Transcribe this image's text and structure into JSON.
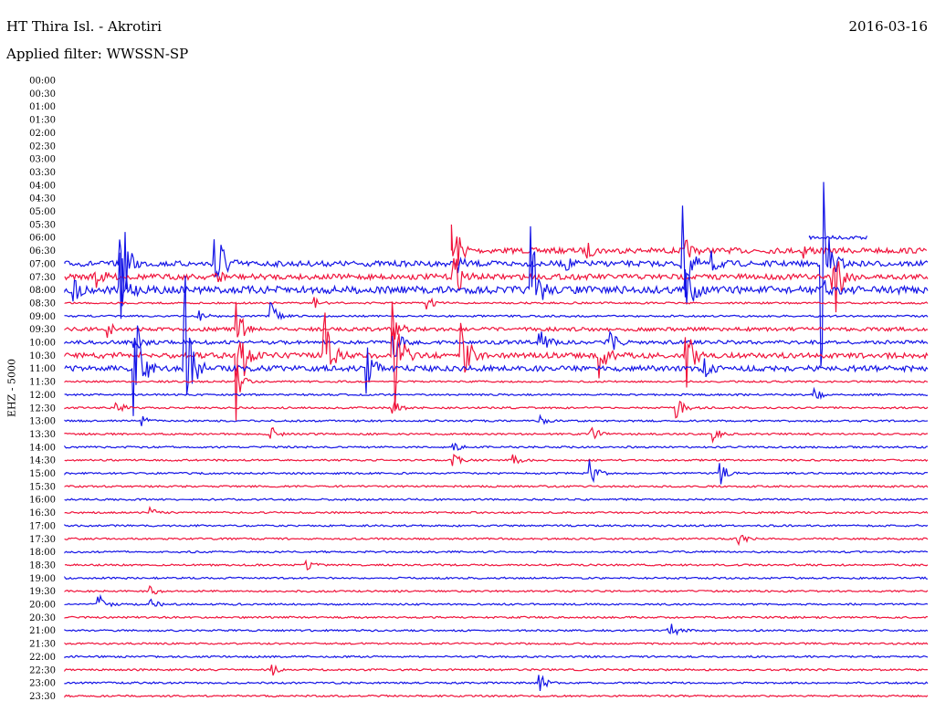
{
  "header": {
    "station": "HT Thira Isl. - Akrotiri",
    "date": "2016-03-16",
    "filter_label": "Applied filter: WWSSN-SP",
    "channel_label": "EHZ - 5000"
  },
  "colors": {
    "red": "#f0143c",
    "blue": "#1414e6"
  },
  "chart_data": {
    "type": "line",
    "title": "HT Thira Isl. - Akrotiri",
    "ylabel": "EHZ - 5000",
    "rows": [
      {
        "label": "00:00",
        "color": "blue",
        "start": null,
        "noise": 0,
        "events": []
      },
      {
        "label": "00:30",
        "color": "red",
        "start": null,
        "noise": 0,
        "events": []
      },
      {
        "label": "01:00",
        "color": "blue",
        "start": null,
        "noise": 0,
        "events": []
      },
      {
        "label": "01:30",
        "color": "red",
        "start": null,
        "noise": 0,
        "events": []
      },
      {
        "label": "02:00",
        "color": "blue",
        "start": null,
        "noise": 0,
        "events": []
      },
      {
        "label": "02:30",
        "color": "red",
        "start": null,
        "noise": 0,
        "events": []
      },
      {
        "label": "03:00",
        "color": "blue",
        "start": null,
        "noise": 0,
        "events": []
      },
      {
        "label": "03:30",
        "color": "red",
        "start": null,
        "noise": 0,
        "events": []
      },
      {
        "label": "04:00",
        "color": "blue",
        "start": null,
        "noise": 0,
        "events": []
      },
      {
        "label": "04:30",
        "color": "red",
        "start": null,
        "noise": 0,
        "events": []
      },
      {
        "label": "05:00",
        "color": "blue",
        "start": null,
        "noise": 0,
        "events": []
      },
      {
        "label": "05:30",
        "color": "red",
        "start": null,
        "noise": 0,
        "events": []
      },
      {
        "label": "06:00",
        "color": "blue",
        "start": 0.863,
        "end": 0.93,
        "noise": 2,
        "events": []
      },
      {
        "label": "06:30",
        "color": "red",
        "start": 0.448,
        "noise": 3,
        "events": [
          [
            0.448,
            60
          ],
          [
            0.605,
            8
          ],
          [
            0.72,
            10
          ],
          [
            0.855,
            10
          ]
        ]
      },
      {
        "label": "07:00",
        "color": "blue",
        "start": 0,
        "noise": 3,
        "events": [
          [
            0.065,
            70
          ],
          [
            0.175,
            70
          ],
          [
            0.455,
            8
          ],
          [
            0.58,
            8
          ],
          [
            0.715,
            70
          ],
          [
            0.75,
            12
          ],
          [
            0.878,
            120
          ]
        ]
      },
      {
        "label": "07:30",
        "color": "red",
        "start": 0,
        "noise": 3,
        "events": [
          [
            0.035,
            15
          ],
          [
            0.175,
            10
          ],
          [
            0.45,
            35
          ],
          [
            0.89,
            70
          ]
        ]
      },
      {
        "label": "08:00",
        "color": "blue",
        "start": 0,
        "noise": 4,
        "events": [
          [
            0.01,
            12
          ],
          [
            0.065,
            40
          ],
          [
            0.54,
            80
          ],
          [
            0.72,
            35
          ],
          [
            0.88,
            15
          ]
        ]
      },
      {
        "label": "08:30",
        "color": "red",
        "start": 0,
        "noise": 1,
        "events": [
          [
            0.29,
            6
          ],
          [
            0.42,
            8
          ]
        ]
      },
      {
        "label": "09:00",
        "color": "blue",
        "start": 0,
        "noise": 1,
        "events": [
          [
            0.155,
            10
          ],
          [
            0.24,
            15
          ]
        ]
      },
      {
        "label": "09:30",
        "color": "red",
        "start": 0,
        "noise": 2,
        "events": [
          [
            0.05,
            8
          ],
          [
            0.2,
            30
          ],
          [
            0.38,
            20
          ]
        ]
      },
      {
        "label": "10:00",
        "color": "blue",
        "start": 0,
        "noise": 2,
        "events": [
          [
            0.08,
            15
          ],
          [
            0.38,
            25
          ],
          [
            0.55,
            18
          ],
          [
            0.63,
            25
          ]
        ]
      },
      {
        "label": "10:30",
        "color": "red",
        "start": 0,
        "noise": 3,
        "events": [
          [
            0.2,
            70
          ],
          [
            0.3,
            70
          ],
          [
            0.38,
            90
          ],
          [
            0.46,
            60
          ],
          [
            0.62,
            30
          ],
          [
            0.72,
            40
          ]
        ]
      },
      {
        "label": "11:00",
        "color": "blue",
        "start": 0,
        "noise": 3,
        "events": [
          [
            0.08,
            110
          ],
          [
            0.14,
            100
          ],
          [
            0.35,
            30
          ],
          [
            0.74,
            12
          ]
        ]
      },
      {
        "label": "11:30",
        "color": "red",
        "start": 0,
        "noise": 1,
        "events": [
          [
            0.2,
            20
          ]
        ]
      },
      {
        "label": "12:00",
        "color": "blue",
        "start": 0,
        "noise": 1,
        "events": [
          [
            0.87,
            8
          ]
        ]
      },
      {
        "label": "12:30",
        "color": "red",
        "start": 0,
        "noise": 1,
        "events": [
          [
            0.06,
            8
          ],
          [
            0.38,
            10
          ],
          [
            0.71,
            12
          ]
        ]
      },
      {
        "label": "13:00",
        "color": "blue",
        "start": 0,
        "noise": 1,
        "events": [
          [
            0.09,
            6
          ],
          [
            0.55,
            6
          ]
        ]
      },
      {
        "label": "13:30",
        "color": "red",
        "start": 0,
        "noise": 1,
        "events": [
          [
            0.24,
            8
          ],
          [
            0.61,
            12
          ],
          [
            0.75,
            12
          ]
        ]
      },
      {
        "label": "14:00",
        "color": "blue",
        "start": 0,
        "noise": 1,
        "events": [
          [
            0.45,
            6
          ]
        ]
      },
      {
        "label": "14:30",
        "color": "red",
        "start": 0,
        "noise": 1,
        "events": [
          [
            0.45,
            10
          ],
          [
            0.52,
            6
          ]
        ]
      },
      {
        "label": "15:00",
        "color": "blue",
        "start": 0,
        "noise": 1,
        "events": [
          [
            0.61,
            14
          ],
          [
            0.76,
            16
          ]
        ]
      },
      {
        "label": "15:30",
        "color": "red",
        "start": 0,
        "noise": 1,
        "events": []
      },
      {
        "label": "16:00",
        "color": "blue",
        "start": 0,
        "noise": 1,
        "events": []
      },
      {
        "label": "16:30",
        "color": "red",
        "start": 0,
        "noise": 1,
        "events": [
          [
            0.1,
            5
          ]
        ]
      },
      {
        "label": "17:00",
        "color": "blue",
        "start": 0,
        "noise": 1,
        "events": []
      },
      {
        "label": "17:30",
        "color": "red",
        "start": 0,
        "noise": 1,
        "events": [
          [
            0.78,
            12
          ]
        ]
      },
      {
        "label": "18:00",
        "color": "blue",
        "start": 0,
        "noise": 1,
        "events": []
      },
      {
        "label": "18:30",
        "color": "red",
        "start": 0,
        "noise": 1,
        "events": [
          [
            0.28,
            5
          ]
        ]
      },
      {
        "label": "19:00",
        "color": "blue",
        "start": 0,
        "noise": 1,
        "events": []
      },
      {
        "label": "19:30",
        "color": "red",
        "start": 0,
        "noise": 1,
        "events": [
          [
            0.1,
            5
          ]
        ]
      },
      {
        "label": "20:00",
        "color": "blue",
        "start": 0,
        "noise": 1,
        "events": [
          [
            0.04,
            12
          ],
          [
            0.1,
            6
          ]
        ]
      },
      {
        "label": "20:30",
        "color": "red",
        "start": 0,
        "noise": 1,
        "events": []
      },
      {
        "label": "21:00",
        "color": "blue",
        "start": 0,
        "noise": 1,
        "events": [
          [
            0.7,
            14
          ]
        ]
      },
      {
        "label": "21:30",
        "color": "red",
        "start": 0,
        "noise": 1,
        "events": []
      },
      {
        "label": "22:00",
        "color": "blue",
        "start": 0,
        "noise": 1,
        "events": []
      },
      {
        "label": "22:30",
        "color": "red",
        "start": 0,
        "noise": 1,
        "events": [
          [
            0.24,
            8
          ]
        ]
      },
      {
        "label": "23:00",
        "color": "blue",
        "start": 0,
        "noise": 1,
        "events": [
          [
            0.55,
            12
          ]
        ]
      },
      {
        "label": "23:30",
        "color": "red",
        "start": 0,
        "noise": 1,
        "events": []
      }
    ]
  }
}
